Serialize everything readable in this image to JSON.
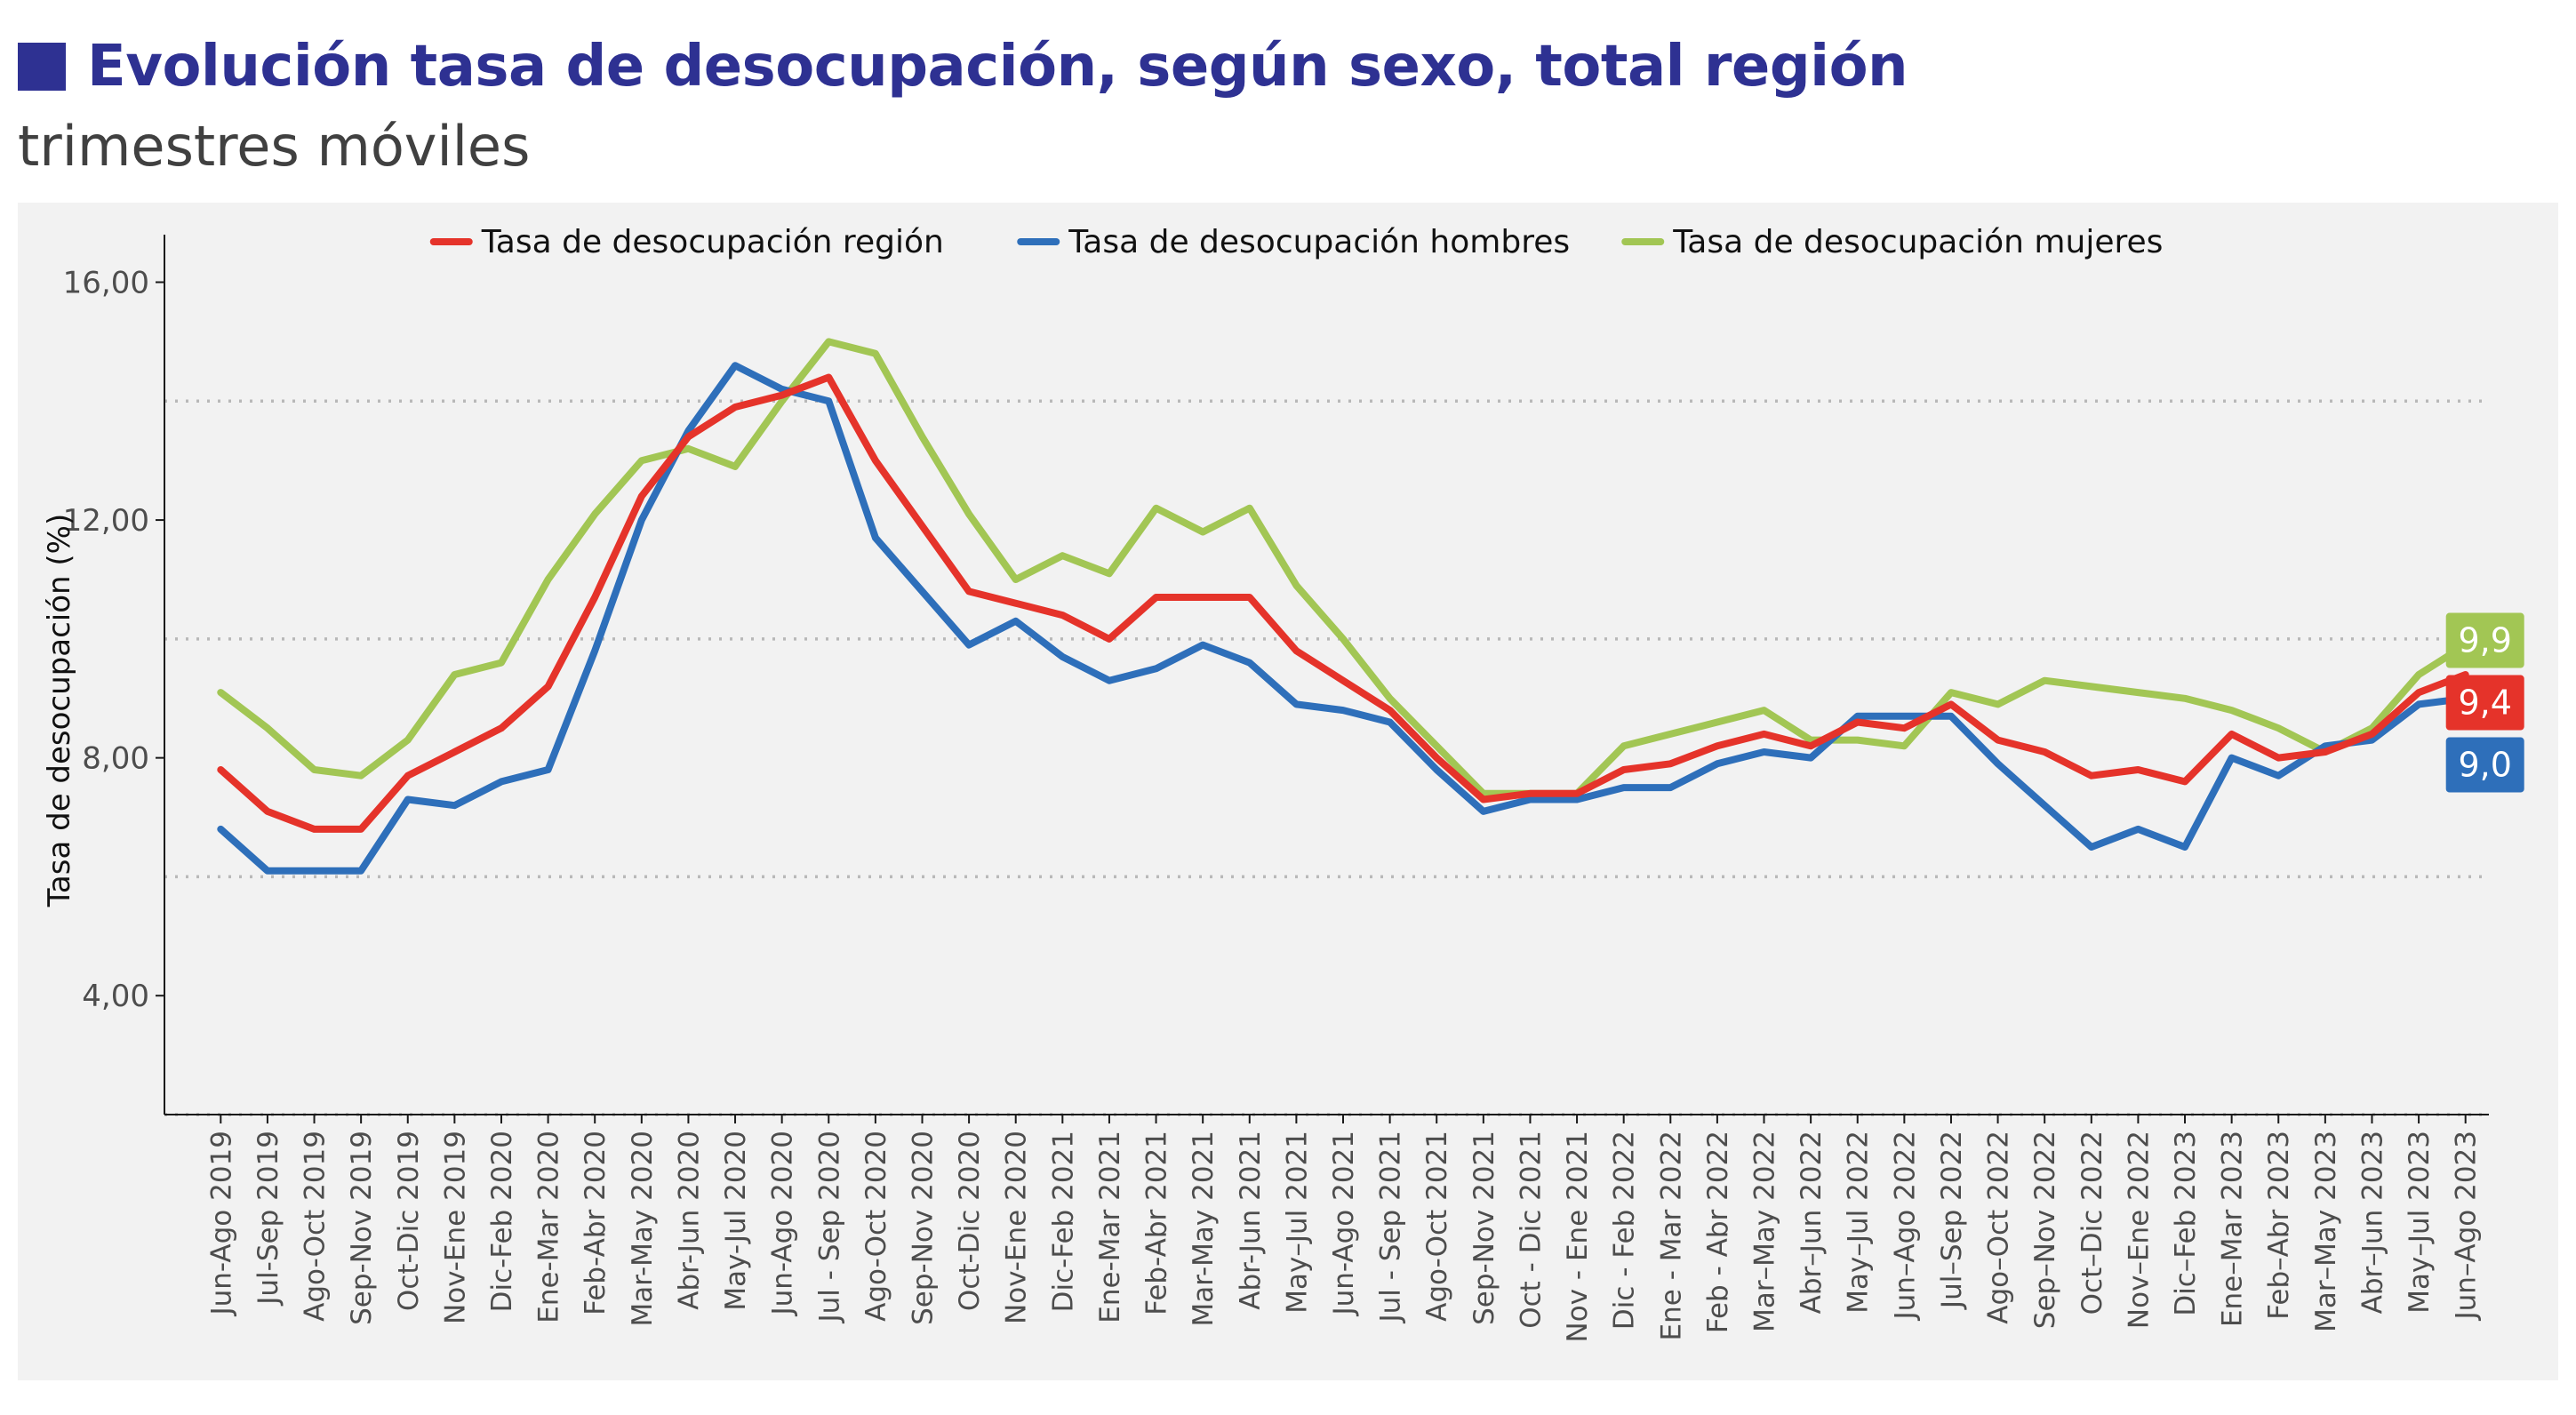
{
  "header": {
    "title": "Evolución tasa de desocupación, según sexo, total región",
    "subtitle": "trimestres móviles",
    "accent_color": "#2e3192"
  },
  "chart_data": {
    "type": "line",
    "title": "Evolución tasa de desocupación, según sexo, total región",
    "subtitle": "trimestres móviles",
    "xlabel": "",
    "ylabel": "Tasa de desocupación (%)",
    "ylim": [
      2,
      16.8
    ],
    "yticks": [
      4,
      8,
      12,
      16
    ],
    "ytick_labels": [
      "4,00",
      "8,00",
      "12,00",
      "16,00"
    ],
    "grid": "horizontal dotted",
    "legend_position": "top",
    "categories": [
      "Jun-Ago 2019",
      "Jul-Sep 2019",
      "Ago-Oct 2019",
      "Sep-Nov 2019",
      "Oct-Dic 2019",
      "Nov-Ene 2019",
      "Dic-Feb 2020",
      "Ene-Mar 2020",
      "Feb-Abr 2020",
      "Mar-May 2020",
      "Abr-Jun 2020",
      "May-Jul 2020",
      "Jun-Ago 2020",
      "Jul - Sep 2020",
      "Ago-Oct 2020",
      "Sep-Nov 2020",
      "Oct-Dic 2020",
      "Nov-Ene 2020",
      "Dic-Feb 2021",
      "Ene-Mar 2021",
      "Feb-Abr 2021",
      "Mar-May 2021",
      "Abr-Jun 2021",
      "May–Jul 2021",
      "Jun-Ago 2021",
      "Jul - Sep 2021",
      "Ago-Oct 2021",
      "Sep-Nov 2021",
      "Oct - Dic 2021",
      "Nov - Ene 2021",
      "Dic - Feb 2022",
      "Ene - Mar 2022",
      "Feb - Abr 2022",
      "Mar–May 2022",
      "Abr–Jun 2022",
      "May–Jul 2022",
      "Jun–Ago 2022",
      "Jul–Sep 2022",
      "Ago–Oct 2022",
      "Sep–Nov 2022",
      "Oct–Dic 2022",
      "Nov–Ene 2022",
      "Dic–Feb 2023",
      "Ene–Mar 2023",
      "Feb–Abr 2023",
      "Mar–May 2023",
      "Abr–Jun 2023",
      "May–Jul 2023",
      "Jun–Ago 2023"
    ],
    "series": [
      {
        "name": "Tasa de desocupación región",
        "color": "#e5332a",
        "end_label": "9,4",
        "values": [
          7.8,
          7.1,
          6.8,
          6.8,
          7.7,
          8.1,
          8.5,
          9.2,
          10.7,
          12.4,
          13.4,
          13.9,
          14.1,
          14.4,
          13.0,
          11.9,
          10.8,
          10.6,
          10.4,
          10.0,
          10.7,
          10.7,
          10.7,
          9.8,
          9.3,
          8.8,
          8.0,
          7.3,
          7.4,
          7.4,
          7.8,
          7.9,
          8.2,
          8.4,
          8.2,
          8.6,
          8.5,
          8.9,
          8.3,
          8.1,
          7.7,
          7.8,
          7.6,
          8.4,
          8.0,
          8.1,
          8.4,
          9.1,
          9.4
        ]
      },
      {
        "name": "Tasa de desocupación hombres",
        "color": "#2e6fba",
        "end_label": "9,0",
        "values": [
          6.8,
          6.1,
          6.1,
          6.1,
          7.3,
          7.2,
          7.6,
          7.8,
          9.8,
          12.0,
          13.5,
          14.6,
          14.2,
          14.0,
          11.7,
          10.8,
          9.9,
          10.3,
          9.7,
          9.3,
          9.5,
          9.9,
          9.6,
          8.9,
          8.8,
          8.6,
          7.8,
          7.1,
          7.3,
          7.3,
          7.5,
          7.5,
          7.9,
          8.1,
          8.0,
          8.7,
          8.7,
          8.7,
          7.9,
          7.2,
          6.5,
          6.8,
          6.5,
          8.0,
          7.7,
          8.2,
          8.3,
          8.9,
          9.0
        ]
      },
      {
        "name": "Tasa de desocupación mujeres",
        "color": "#a2c654",
        "end_label": "9,9",
        "values": [
          9.1,
          8.5,
          7.8,
          7.7,
          8.3,
          9.4,
          9.6,
          11.0,
          12.1,
          13.0,
          13.2,
          12.9,
          14.0,
          15.0,
          14.8,
          13.4,
          12.1,
          11.0,
          11.4,
          11.1,
          12.2,
          11.8,
          12.2,
          10.9,
          10.0,
          9.0,
          8.2,
          7.4,
          7.4,
          7.4,
          8.2,
          8.4,
          8.6,
          8.8,
          8.3,
          8.3,
          8.2,
          9.1,
          8.9,
          9.3,
          9.2,
          9.1,
          9.0,
          8.8,
          8.5,
          8.1,
          8.5,
          9.4,
          9.9
        ]
      }
    ]
  }
}
